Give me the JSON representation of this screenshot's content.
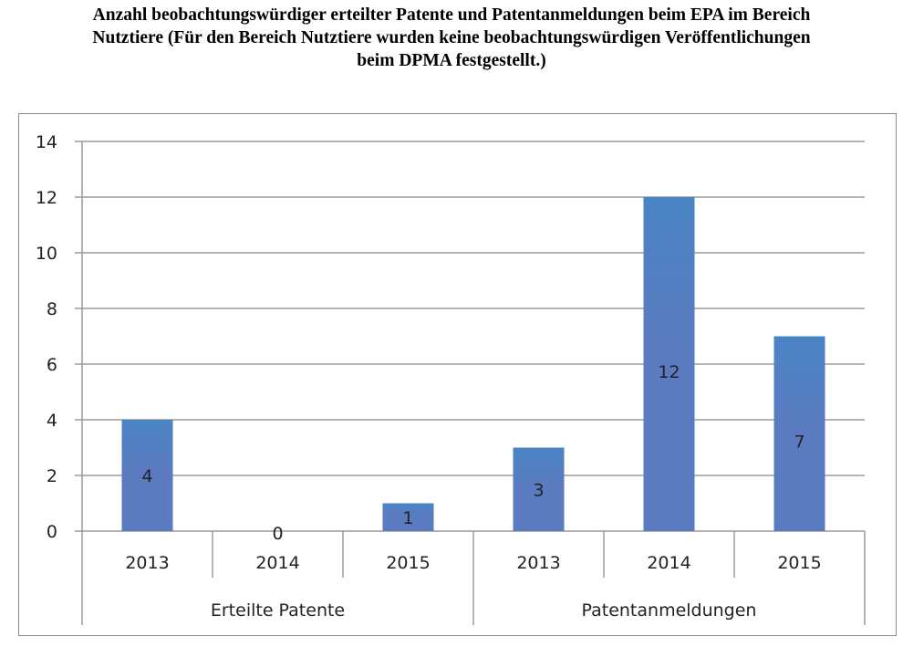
{
  "title": {
    "line1": "Anzahl beobachtungswürdiger erteilter Patente und Patentanmeldungen beim EPA im Bereich",
    "line2": "Nutztiere (Für den Bereich Nutztiere wurden keine beobachtungswürdigen Veröffentlichungen",
    "line3": "beim DPMA festgestellt.)"
  },
  "chart_data": {
    "type": "bar",
    "groups": [
      {
        "name": "Erteilte Patente",
        "categories": [
          "2013",
          "2014",
          "2015"
        ],
        "values": [
          4,
          0,
          1
        ]
      },
      {
        "name": "Patentanmeldungen",
        "categories": [
          "2013",
          "2014",
          "2015"
        ],
        "values": [
          3,
          12,
          7
        ]
      }
    ],
    "ylim": [
      0,
      14
    ],
    "yticks": [
      0,
      2,
      4,
      6,
      8,
      10,
      12,
      14
    ],
    "grid": true,
    "colors": {
      "bar": "#5a7bc0",
      "bar_top": "#4a84c4",
      "grid": "#9a9a9a"
    }
  }
}
